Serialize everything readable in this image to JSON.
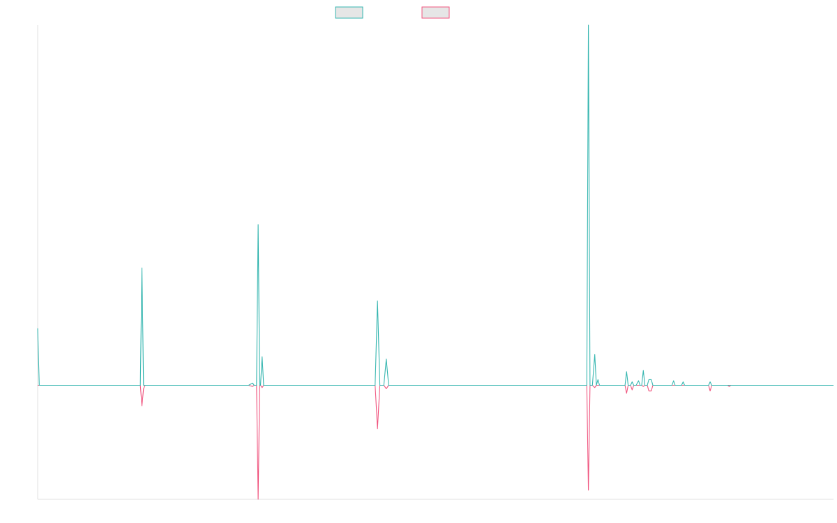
{
  "colors": {
    "series_a": "#36b6b0",
    "series_b": "#f0557f",
    "legend_fill": "#e6e6e6",
    "axis": "#e0e0e0"
  },
  "chart_data": {
    "type": "line",
    "title": "",
    "xlabel": "",
    "ylabel": "",
    "xlim": [
      0,
      1000
    ],
    "ylim": [
      -100,
      316
    ],
    "grid": false,
    "legend": {
      "placement": "top-center",
      "entries": [
        "",
        ""
      ]
    },
    "series": [
      {
        "color": "#36b6b0",
        "points": [
          [
            0,
            50
          ],
          [
            2,
            0
          ],
          [
            129,
            0
          ],
          [
            131,
            103
          ],
          [
            133,
            0
          ],
          [
            265,
            0
          ],
          [
            270,
            2
          ],
          [
            272,
            0
          ],
          [
            275,
            0
          ],
          [
            277,
            141
          ],
          [
            279,
            0
          ],
          [
            280,
            0
          ],
          [
            282,
            25
          ],
          [
            284,
            0
          ],
          [
            424,
            0
          ],
          [
            427,
            74
          ],
          [
            430,
            0
          ],
          [
            435,
            0
          ],
          [
            438,
            23
          ],
          [
            441,
            0
          ],
          [
            690,
            0
          ],
          [
            692,
            316
          ],
          [
            694,
            0
          ],
          [
            697,
            0
          ],
          [
            700,
            27
          ],
          [
            702,
            0
          ],
          [
            704,
            5
          ],
          [
            706,
            0
          ],
          [
            738,
            0
          ],
          [
            740,
            12
          ],
          [
            742,
            0
          ],
          [
            745,
            0
          ],
          [
            747,
            3
          ],
          [
            749,
            0
          ],
          [
            752,
            0
          ],
          [
            755,
            4
          ],
          [
            757,
            0
          ],
          [
            759,
            0
          ],
          [
            761,
            13
          ],
          [
            763,
            0
          ],
          [
            766,
            0
          ],
          [
            768,
            5
          ],
          [
            771,
            5
          ],
          [
            773,
            0
          ],
          [
            797,
            0
          ],
          [
            799,
            4
          ],
          [
            801,
            0
          ],
          [
            809,
            0
          ],
          [
            811,
            3
          ],
          [
            813,
            0
          ],
          [
            843,
            0
          ],
          [
            845,
            3
          ],
          [
            847,
            0
          ],
          [
            867,
            0
          ],
          [
            869,
            0
          ],
          [
            871,
            0
          ],
          [
            1000,
            0
          ]
        ]
      },
      {
        "color": "#f0557f",
        "points": [
          [
            0,
            0
          ],
          [
            129,
            0
          ],
          [
            131,
            -18
          ],
          [
            133,
            -3
          ],
          [
            135,
            0
          ],
          [
            265,
            0
          ],
          [
            270,
            -1
          ],
          [
            272,
            0
          ],
          [
            275,
            0
          ],
          [
            277,
            -100
          ],
          [
            279,
            0
          ],
          [
            280,
            0
          ],
          [
            282,
            -2
          ],
          [
            284,
            0
          ],
          [
            424,
            0
          ],
          [
            427,
            -38
          ],
          [
            430,
            0
          ],
          [
            435,
            0
          ],
          [
            438,
            -3
          ],
          [
            441,
            0
          ],
          [
            690,
            0
          ],
          [
            692,
            -92
          ],
          [
            694,
            0
          ],
          [
            697,
            0
          ],
          [
            700,
            -2
          ],
          [
            702,
            0
          ],
          [
            738,
            0
          ],
          [
            740,
            -7
          ],
          [
            742,
            0
          ],
          [
            745,
            0
          ],
          [
            747,
            -4
          ],
          [
            749,
            0
          ],
          [
            759,
            0
          ],
          [
            761,
            -1
          ],
          [
            763,
            0
          ],
          [
            766,
            0
          ],
          [
            768,
            -5
          ],
          [
            771,
            -5
          ],
          [
            773,
            0
          ],
          [
            843,
            0
          ],
          [
            845,
            -5
          ],
          [
            847,
            0
          ],
          [
            867,
            0
          ],
          [
            869,
            -1
          ],
          [
            871,
            0
          ],
          [
            1000,
            0
          ]
        ]
      }
    ]
  }
}
